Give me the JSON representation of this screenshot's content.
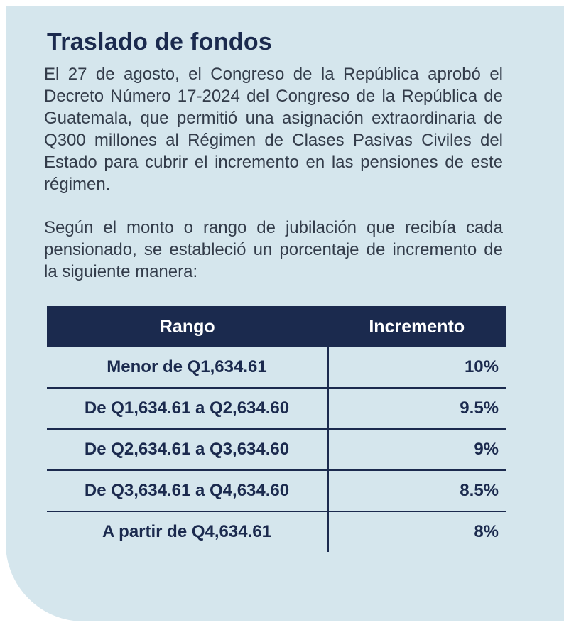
{
  "title": "Traslado de fondos",
  "paragraphs": [
    "El 27 de agosto, el Congreso de la República aprobó el Decreto Número 17-2024 del Congreso de la República de Guatemala, que permitió una asignación extraordinaria de Q300 millones al Régimen de Clases Pasivas Civiles del Estado para cubrir el incremento en las pensiones de este régimen.",
    "Según el monto o rango de jubilación que recibía cada pensionado, se estableció un porcentaje de incremento de la siguiente manera:"
  ],
  "table": {
    "headers": [
      "Rango",
      "Incremento"
    ],
    "rows": [
      [
        "Menor de Q1,634.61",
        "10%"
      ],
      [
        "De Q1,634.61 a Q2,634.60",
        "9.5%"
      ],
      [
        "De Q2,634.61 a Q3,634.60",
        "9%"
      ],
      [
        "De Q3,634.61 a Q4,634.60",
        "8.5%"
      ],
      [
        "A partir de Q4,634.61",
        "8%"
      ]
    ]
  }
}
